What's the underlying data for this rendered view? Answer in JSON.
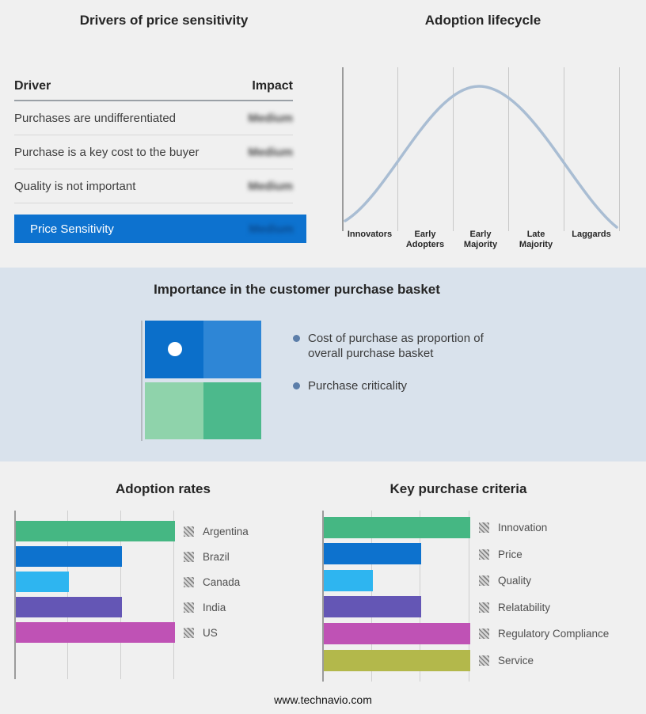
{
  "drivers": {
    "title": "Drivers of price sensitivity",
    "header": {
      "driver": "Driver",
      "impact": "Impact"
    },
    "rows": [
      {
        "label": "Purchases are undifferentiated",
        "impact": "Medium"
      },
      {
        "label": "Purchase is a key cost to the buyer",
        "impact": "Medium"
      },
      {
        "label": "Quality is not important",
        "impact": "Medium"
      }
    ],
    "summary": {
      "label": "Price Sensitivity",
      "impact": "Medium",
      "color": "#0d72cf"
    }
  },
  "lifecycle": {
    "title": "Adoption lifecycle",
    "curve_color": "#a9bdd3",
    "stages": [
      {
        "line1": "Innovators",
        "line2": ""
      },
      {
        "line1": "Early",
        "line2": "Adopters"
      },
      {
        "line1": "Early",
        "line2": "Majority"
      },
      {
        "line1": "Late",
        "line2": "Majority"
      },
      {
        "line1": "Laggards",
        "line2": ""
      }
    ]
  },
  "basket": {
    "title": "Importance in the customer purchase basket",
    "bullets": [
      "Cost of purchase as proportion of overall purchase basket",
      "Purchase criticality"
    ],
    "quadrant_colors": {
      "top_left": "#0b6fca",
      "top_right": "#2e86d6",
      "bottom_left": "#8fd3ab",
      "bottom_right": "#4cb98c"
    }
  },
  "adoption_rates": {
    "title": "Adoption rates",
    "bars": [
      {
        "label": "Argentina",
        "value": 3,
        "color": "#45b783"
      },
      {
        "label": "Brazil",
        "value": 2,
        "color": "#0d72ce"
      },
      {
        "label": "Canada",
        "value": 1,
        "color": "#2eb5f0"
      },
      {
        "label": "India",
        "value": 2,
        "color": "#6456b5"
      },
      {
        "label": "US",
        "value": 3,
        "color": "#bf52b5"
      }
    ]
  },
  "purchase_criteria": {
    "title": "Key purchase criteria",
    "bars": [
      {
        "label": "Innovation",
        "value": 3,
        "color": "#45b783"
      },
      {
        "label": "Price",
        "value": 2,
        "color": "#0d72ce"
      },
      {
        "label": "Quality",
        "value": 1,
        "color": "#2eb5f0"
      },
      {
        "label": "Relatability",
        "value": 2,
        "color": "#6456b5"
      },
      {
        "label": "Regulatory Compliance",
        "value": 3,
        "color": "#bf52b5"
      },
      {
        "label": "Service",
        "value": 3,
        "color": "#b3b84b"
      }
    ]
  },
  "footer": {
    "url": "www.technavio.com"
  },
  "chart_data": [
    {
      "type": "bar",
      "orientation": "horizontal",
      "title": "Adoption rates",
      "categories": [
        "Argentina",
        "Brazil",
        "Canada",
        "India",
        "US"
      ],
      "values": [
        3,
        2,
        1,
        2,
        3
      ],
      "xlabel": "",
      "ylabel": "",
      "xlim": [
        0,
        3
      ],
      "note": "No numeric axis shown; values estimated in gridline units",
      "grid": true,
      "legend_position": "right"
    },
    {
      "type": "bar",
      "orientation": "horizontal",
      "title": "Key purchase criteria",
      "categories": [
        "Innovation",
        "Price",
        "Quality",
        "Relatability",
        "Regulatory Compliance",
        "Service"
      ],
      "values": [
        3,
        2,
        1,
        2,
        3,
        3
      ],
      "xlabel": "",
      "ylabel": "",
      "xlim": [
        0,
        3
      ],
      "note": "No numeric axis shown; values estimated in gridline units",
      "grid": true,
      "legend_position": "right"
    },
    {
      "type": "line",
      "title": "Adoption lifecycle",
      "categories": [
        "Innovators",
        "Early Adopters",
        "Early Majority",
        "Late Majority",
        "Laggards"
      ],
      "values": [
        0.1,
        0.55,
        1.0,
        0.55,
        0.1
      ],
      "note": "Bell curve peaking at Early Majority; no numeric axes",
      "grid": true
    }
  ]
}
